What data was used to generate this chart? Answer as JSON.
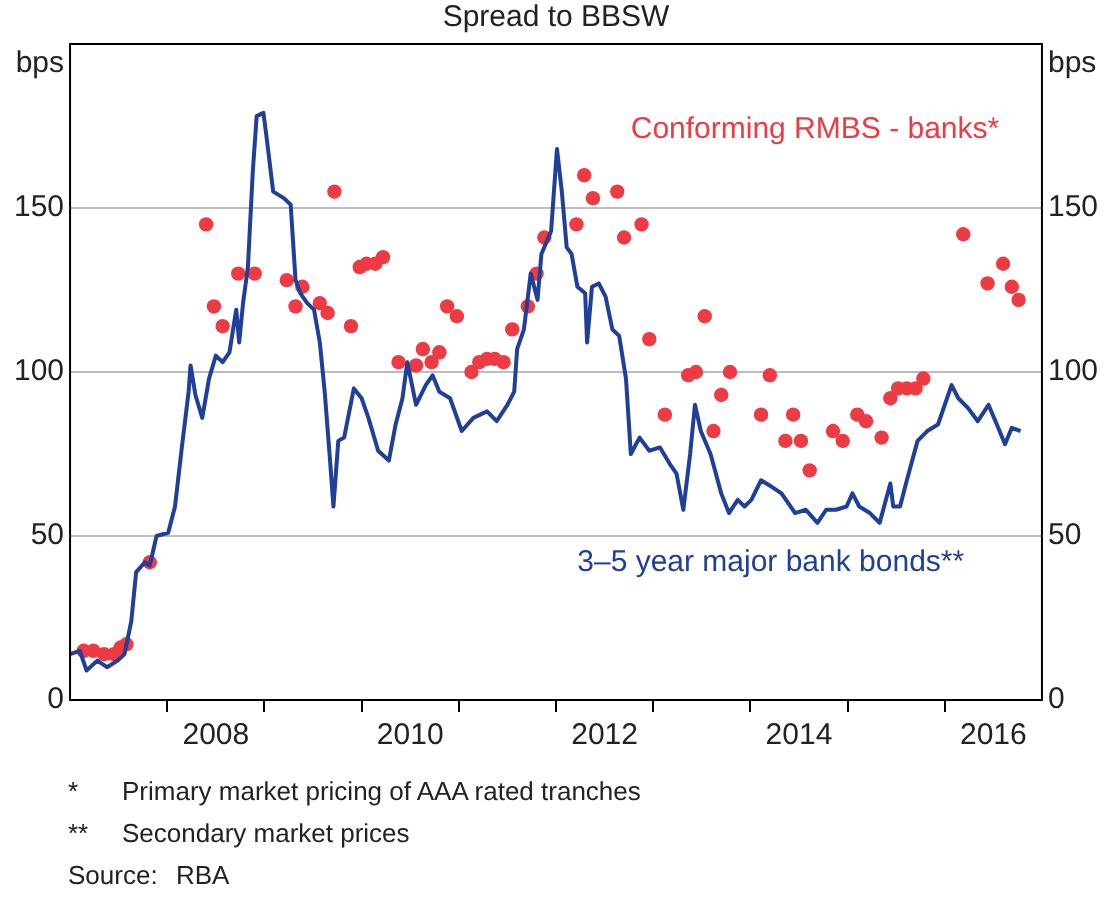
{
  "chart_data": {
    "type": "line",
    "title": "Spread to BBSW",
    "ylabel": "bps",
    "y2label": "bps",
    "xlim": [
      2007,
      2017
    ],
    "xticks": [
      {
        "value": 2008,
        "label": null
      },
      {
        "value": 2008.5,
        "label": "2008"
      },
      {
        "value": 2009,
        "label": null
      },
      {
        "value": 2010,
        "label": null
      },
      {
        "value": 2010.5,
        "label": "2010"
      },
      {
        "value": 2011,
        "label": null
      },
      {
        "value": 2012,
        "label": null
      },
      {
        "value": 2012.5,
        "label": "2012"
      },
      {
        "value": 2013,
        "label": null
      },
      {
        "value": 2014,
        "label": null
      },
      {
        "value": 2014.5,
        "label": "2014"
      },
      {
        "value": 2015,
        "label": null
      },
      {
        "value": 2016,
        "label": null
      },
      {
        "value": 2016.5,
        "label": "2016"
      }
    ],
    "ylim": [
      0,
      200
    ],
    "yticks": [
      0,
      50,
      100,
      150
    ],
    "y2lim": [
      0,
      200
    ],
    "y2ticks": [
      0,
      50,
      100,
      150
    ],
    "grid": "y",
    "legend": false,
    "series": [
      {
        "name": "3–5 year major bank bonds**",
        "color": "#1f3f99",
        "x": [
          2007.0,
          2007.1,
          2007.17,
          2007.28,
          2007.38,
          2007.49,
          2007.56,
          2007.63,
          2007.68,
          2007.77,
          2007.82,
          2007.89,
          2008.01,
          2008.08,
          2008.15,
          2008.22,
          2008.24,
          2008.29,
          2008.36,
          2008.43,
          2008.5,
          2008.57,
          2008.64,
          2008.71,
          2008.74,
          2008.78,
          2008.83,
          2008.88,
          2008.92,
          2008.99,
          2009.02,
          2009.09,
          2009.2,
          2009.27,
          2009.32,
          2009.37,
          2009.44,
          2009.51,
          2009.57,
          2009.62,
          2009.67,
          2009.71,
          2009.76,
          2009.82,
          2009.92,
          2010.0,
          2010.07,
          2010.17,
          2010.28,
          2010.35,
          2010.42,
          2010.47,
          2010.56,
          2010.66,
          2010.73,
          2010.8,
          2010.91,
          2011.03,
          2011.15,
          2011.29,
          2011.39,
          2011.5,
          2011.57,
          2011.6,
          2011.67,
          2011.74,
          2011.81,
          2011.85,
          2011.95,
          2012.01,
          2012.06,
          2012.11,
          2012.16,
          2012.22,
          2012.3,
          2012.32,
          2012.37,
          2012.44,
          2012.51,
          2012.58,
          2012.65,
          2012.72,
          2012.77,
          2012.86,
          2012.96,
          2013.07,
          2013.17,
          2013.24,
          2013.31,
          2013.38,
          2013.43,
          2013.49,
          2013.59,
          2013.7,
          2013.78,
          2013.87,
          2013.94,
          2014.01,
          2014.11,
          2014.22,
          2014.32,
          2014.46,
          2014.57,
          2014.69,
          2014.78,
          2014.88,
          2014.99,
          2015.05,
          2015.12,
          2015.23,
          2015.33,
          2015.44,
          2015.47,
          2015.54,
          2015.61,
          2015.72,
          2015.82,
          2015.93,
          2016.07,
          2016.14,
          2016.24,
          2016.34,
          2016.45,
          2016.55,
          2016.62,
          2016.69,
          2016.78
        ],
        "values": [
          14,
          15,
          9,
          12,
          10,
          12,
          14,
          24,
          39,
          42,
          41,
          50,
          51,
          59,
          77,
          94,
          102,
          93,
          86,
          98,
          105,
          103,
          106,
          119,
          109,
          121,
          132,
          161,
          178,
          179,
          172,
          155,
          153,
          151,
          128,
          124,
          121,
          119,
          109,
          94,
          75,
          59,
          79,
          80,
          95,
          92,
          86,
          76,
          73,
          84,
          92,
          103,
          90,
          96,
          99,
          94,
          92,
          82,
          86,
          88,
          85,
          90,
          94,
          107,
          113,
          130,
          122,
          136,
          143,
          168,
          155,
          138,
          136,
          126,
          124,
          109,
          126,
          127,
          123,
          113,
          111,
          98,
          75,
          80,
          76,
          77,
          72,
          69,
          58,
          75,
          90,
          82,
          75,
          63,
          57,
          61,
          59,
          61,
          67,
          65,
          63,
          57,
          58,
          54,
          58,
          58,
          59,
          63,
          59,
          57,
          54,
          66,
          59,
          59,
          67,
          79,
          82,
          84,
          96,
          92,
          89,
          85,
          90,
          83,
          78,
          83,
          82
        ]
      },
      {
        "name": "Conforming RMBS - banks*",
        "type": "scatter",
        "marker": "circle",
        "color": "#ee3a43",
        "x": [
          2007.14,
          2007.24,
          2007.35,
          2007.45,
          2007.52,
          2007.58,
          2007.82,
          2008.4,
          2008.48,
          2008.57,
          2008.73,
          2008.9,
          2009.23,
          2009.32,
          2009.39,
          2009.57,
          2009.65,
          2009.72,
          2009.89,
          2009.98,
          2010.05,
          2010.14,
          2010.22,
          2010.38,
          2010.56,
          2010.63,
          2010.72,
          2010.8,
          2010.88,
          2010.98,
          2011.13,
          2011.21,
          2011.29,
          2011.37,
          2011.46,
          2011.55,
          2011.71,
          2011.8,
          2011.88,
          2012.21,
          2012.29,
          2012.38,
          2012.63,
          2012.7,
          2012.88,
          2012.96,
          2013.12,
          2013.36,
          2013.44,
          2013.53,
          2013.62,
          2013.7,
          2013.79,
          2014.11,
          2014.2,
          2014.36,
          2014.44,
          2014.52,
          2014.61,
          2014.85,
          2014.95,
          2015.1,
          2015.19,
          2015.35,
          2015.44,
          2015.52,
          2015.61,
          2015.7,
          2015.78,
          2016.19,
          2016.44,
          2016.6,
          2016.69,
          2016.76
        ],
        "values": [
          15,
          15,
          14,
          14,
          16,
          17,
          42,
          145,
          120,
          114,
          130,
          130,
          128,
          120,
          126,
          121,
          118,
          155,
          114,
          132,
          133,
          133,
          135,
          103,
          102,
          107,
          103,
          106,
          120,
          117,
          100,
          103,
          104,
          104,
          103,
          113,
          120,
          130,
          141,
          145,
          160,
          153,
          155,
          141,
          145,
          110,
          87,
          99,
          100,
          117,
          82,
          93,
          100,
          87,
          99,
          79,
          87,
          79,
          70,
          82,
          79,
          87,
          85,
          80,
          92,
          95,
          95,
          95,
          98,
          142,
          127,
          133,
          126,
          122
        ]
      }
    ],
    "annotations": [
      "* Primary market pricing of AAA rated tranches",
      "** Secondary market prices",
      "Source: RBA"
    ]
  }
}
